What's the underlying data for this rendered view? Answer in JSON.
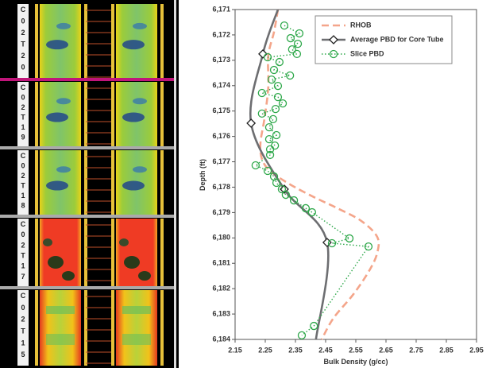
{
  "core_labels": [
    "C02T20",
    "C02T19",
    "C02T18",
    "C02T17",
    "C02T15"
  ],
  "chart_data": {
    "type": "line",
    "xlabel": "Bulk Density (g/cc)",
    "ylabel": "Depth (ft)",
    "xlim": [
      2.15,
      2.95
    ],
    "xticks": [
      2.15,
      2.25,
      2.35,
      2.45,
      2.55,
      2.65,
      2.75,
      2.85,
      2.95
    ],
    "ylim": [
      6171,
      6184
    ],
    "yticks": [
      {
        "value": 6171,
        "label": "6,171"
      },
      {
        "value": 6172,
        "label": "6,172"
      },
      {
        "value": 6173,
        "label": "6,173"
      },
      {
        "value": 6174,
        "label": "6,174"
      },
      {
        "value": 6175,
        "label": "6,175"
      },
      {
        "value": 6176,
        "label": "6,176"
      },
      {
        "value": 6177,
        "label": "6,177"
      },
      {
        "value": 6178,
        "label": "6,178"
      },
      {
        "value": 6179,
        "label": "6,179"
      },
      {
        "value": 6180,
        "label": "6,180"
      },
      {
        "value": 6181,
        "label": "6,181"
      },
      {
        "value": 6182,
        "label": "6,182"
      },
      {
        "value": 6183,
        "label": "6,183"
      },
      {
        "value": 6184,
        "label": "6,184"
      }
    ],
    "y_inverted": true,
    "legend": "upper right",
    "series": [
      {
        "name": "RHOB",
        "color": "#f4a58a",
        "style": "dashed",
        "marker": "none",
        "values": [
          2.292,
          2.279,
          2.26,
          2.26,
          2.247,
          2.234,
          2.239,
          2.266,
          2.332,
          2.411,
          2.489,
          2.568,
          2.621,
          2.621,
          2.595,
          2.542,
          2.476,
          2.437
        ],
        "y": [
          6171,
          6171.88,
          6172.82,
          6174.07,
          6175.32,
          6176.26,
          6176.89,
          6177.36,
          6177.89,
          6178.39,
          6178.83,
          6179.33,
          6179.96,
          6180.59,
          6181.28,
          6182.22,
          6183.16,
          6184
        ]
      },
      {
        "name": "Average PBD for Core Tube",
        "color": "#6d6e71",
        "style": "solid",
        "marker": "diamond",
        "values": [
          2.292,
          2.242,
          2.203,
          2.313,
          2.455,
          2.418
        ],
        "y": [
          6171,
          6172.75,
          6175.48,
          6178.08,
          6180.18,
          6184
        ]
      },
      {
        "name": "Slice PBD",
        "color": "#2ea84a",
        "style": "dotted",
        "marker": "circle",
        "values": [
          2.313,
          2.363,
          2.334,
          2.358,
          2.339,
          2.355,
          2.258,
          2.297,
          2.279,
          2.332,
          2.271,
          2.292,
          2.239,
          2.292,
          2.308,
          2.284,
          2.239,
          2.276,
          2.263,
          2.287,
          2.263,
          2.282,
          2.266,
          2.266,
          2.218,
          2.258,
          2.279,
          2.287,
          2.305,
          2.318,
          2.345,
          2.384,
          2.405,
          2.529,
          2.471,
          2.592,
          2.411,
          2.371
        ],
        "y": [
          6171.63,
          6171.94,
          6172.13,
          6172.35,
          6172.57,
          6172.75,
          6172.88,
          6173.07,
          6173.38,
          6173.6,
          6173.76,
          6174.01,
          6174.29,
          6174.45,
          6174.7,
          6174.92,
          6175.1,
          6175.32,
          6175.64,
          6175.95,
          6176.11,
          6176.36,
          6176.51,
          6176.73,
          6177.14,
          6177.36,
          6177.58,
          6177.83,
          6178.08,
          6178.3,
          6178.52,
          6178.83,
          6178.99,
          6180.02,
          6180.21,
          6180.34,
          6183.47,
          6183.84
        ]
      }
    ]
  }
}
